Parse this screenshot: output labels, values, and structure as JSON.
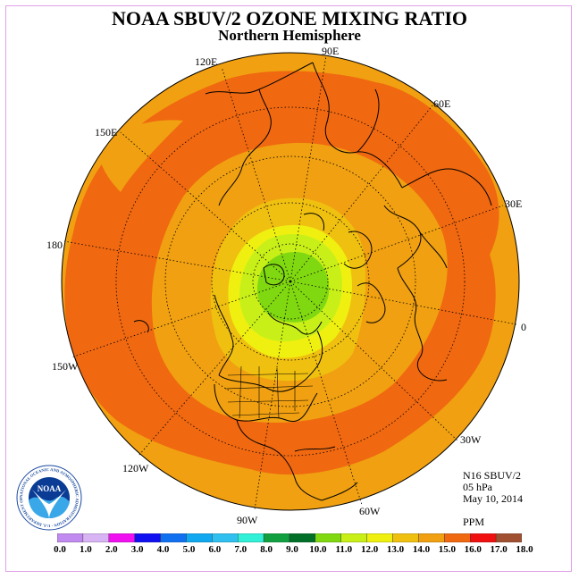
{
  "title": "NOAA SBUV/2 OZONE MIXING RATIO",
  "subtitle": "Northern Hemisphere",
  "info": {
    "instrument": "N16 SBUV/2",
    "level": "05 hPa",
    "date": "May 10, 2014",
    "units": "PPM"
  },
  "longitude_labels": {
    "lon_90e": "90E",
    "lon_60e": "60E",
    "lon_30e": "30E",
    "lon_0": "0",
    "lon_30w": "30W",
    "lon_60w": "60W",
    "lon_90w": "90W",
    "lon_120w": "120W",
    "lon_150w": "150W",
    "lon_180": "180",
    "lon_150e": "150E",
    "lon_120e": "120E"
  },
  "logo": {
    "text": "NOAA",
    "ring_text": "NATIONAL OCEANIC AND ATMOSPHERIC ADMINISTRATION · U.S. DEPARTMENT OF COMMERCE"
  },
  "colorbar": {
    "labels": [
      "0.0",
      "1.0",
      "2.0",
      "3.0",
      "4.0",
      "5.0",
      "6.0",
      "7.0",
      "8.0",
      "9.0",
      "10.0",
      "11.0",
      "12.0",
      "13.0",
      "14.0",
      "15.0",
      "16.0",
      "17.0",
      "18.0"
    ],
    "colors": [
      "#c08af0",
      "#d8b4f4",
      "#f010f0",
      "#1010f0",
      "#1070f0",
      "#10a8f0",
      "#30c0f0",
      "#30f0d8",
      "#10a040",
      "#007028",
      "#80d810",
      "#c8f018",
      "#f0f010",
      "#f0c010",
      "#f0a010",
      "#f06810",
      "#f01010",
      "#a05030"
    ]
  },
  "map_colors": {
    "band_15_16": "#f06810",
    "band_14_15": "#f0a010",
    "band_13_14": "#f0c010",
    "band_12_13": "#f0f010",
    "band_11_12": "#c8f018",
    "band_10_11": "#80d810",
    "coast": "#000000"
  }
}
